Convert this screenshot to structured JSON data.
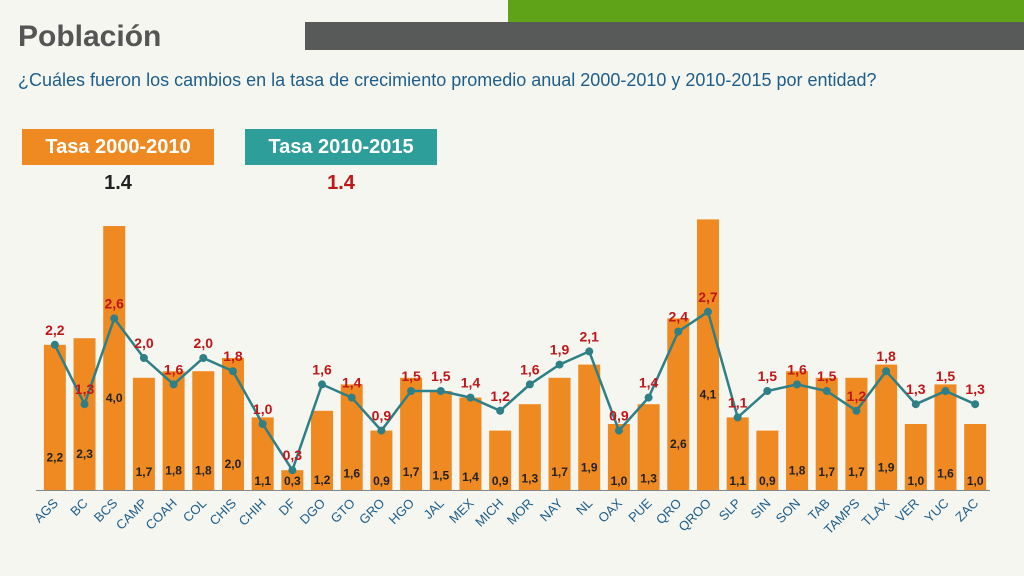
{
  "header": {
    "title": "Población",
    "subtitle": "¿Cuáles fueron los cambios en la tasa de crecimiento promedio anual 2000-2010 y 2010-2015 por entidad?"
  },
  "legend": {
    "series1_label": "Tasa 2000-2010",
    "series1_avg": "1.4",
    "series2_label": "Tasa 2010-2015",
    "series2_avg": "1.4"
  },
  "colors": {
    "bar": "#ef8a22",
    "line": "#2e7f86",
    "line_label": "#c0161a",
    "bar_label": "#222222"
  },
  "chart_data": {
    "type": "bar",
    "categories": [
      "AGS",
      "BC",
      "BCS",
      "CAMP",
      "COAH",
      "COL",
      "CHIS",
      "CHIH",
      "DF",
      "DGO",
      "GTO",
      "GRO",
      "HGO",
      "JAL",
      "MEX",
      "MICH",
      "MOR",
      "NAY",
      "NL",
      "OAX",
      "PUE",
      "QRO",
      "QROO",
      "SLP",
      "SIN",
      "SON",
      "TAB",
      "TAMPS",
      "TLAX",
      "VER",
      "YUC",
      "ZAC"
    ],
    "series": [
      {
        "name": "Tasa 2000-2010",
        "type": "bar",
        "values": [
          2.2,
          2.3,
          4.0,
          1.7,
          1.8,
          1.8,
          2.0,
          1.1,
          0.3,
          1.2,
          1.6,
          0.9,
          1.7,
          1.5,
          1.4,
          0.9,
          1.3,
          1.7,
          1.9,
          1.0,
          1.3,
          2.6,
          4.1,
          1.1,
          0.9,
          1.8,
          1.7,
          1.7,
          1.9,
          1.0,
          1.6,
          1.0
        ],
        "labels": [
          "2,2",
          "2,3",
          "4,0",
          "1,7",
          "1,8",
          "1,8",
          "2,0",
          "1,1",
          "0,3",
          "1,2",
          "1,6",
          "0,9",
          "1,7",
          "1,5",
          "1,4",
          "0,9",
          "1,3",
          "1,7",
          "1,9",
          "1,0",
          "1,3",
          "2,6",
          "4,1",
          "1,1",
          "0,9",
          "1,8",
          "1,7",
          "1,7",
          "1,9",
          "1,0",
          "1,6",
          "1,0"
        ]
      },
      {
        "name": "Tasa 2010-2015",
        "type": "line",
        "values": [
          2.2,
          1.3,
          2.6,
          2.0,
          1.6,
          2.0,
          1.8,
          1.0,
          0.3,
          1.6,
          1.4,
          0.9,
          1.5,
          1.5,
          1.4,
          1.2,
          1.6,
          1.9,
          2.1,
          0.9,
          1.4,
          2.4,
          2.7,
          1.1,
          1.5,
          1.6,
          1.5,
          1.2,
          1.8,
          1.3,
          1.5,
          1.3
        ],
        "labels": [
          "2,2",
          "1,3",
          "2,6",
          "2,0",
          "1,6",
          "2,0",
          "1,8",
          "1,0",
          "0,3",
          "1,6",
          "1,4",
          "0,9",
          "1,5",
          "1,5",
          "1,4",
          "1,2",
          "1,6",
          "1,9",
          "2,1",
          "0,9",
          "1,4",
          "2,4",
          "2,7",
          "1,1",
          "1,5",
          "1,6",
          "1,5",
          "1,2",
          "1,8",
          "1,3",
          "1,5",
          "1,3"
        ]
      }
    ],
    "ylim": [
      0,
      4.2
    ],
    "grid": false
  }
}
